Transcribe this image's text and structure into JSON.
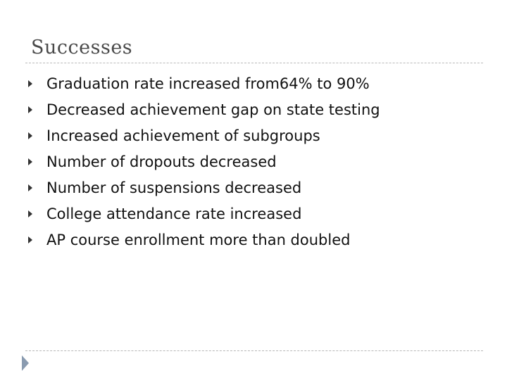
{
  "slide": {
    "title": "Successes",
    "bullets": [
      {
        "icon": "triangle-bullet-icon",
        "text": "Graduation rate increased from64% to 90%"
      },
      {
        "icon": "triangle-bullet-icon",
        "text": "Decreased achievement gap on state testing"
      },
      {
        "icon": "triangle-bullet-icon",
        "text": "Increased achievement of subgroups"
      },
      {
        "icon": "triangle-bullet-icon",
        "text": "Number of dropouts decreased"
      },
      {
        "icon": "triangle-bullet-icon",
        "text": "Number of suspensions decreased"
      },
      {
        "icon": "triangle-bullet-icon",
        "text": "College attendance rate increased"
      },
      {
        "icon": "triangle-bullet-icon",
        "text": "AP course enrollment more than doubled"
      }
    ],
    "colors": {
      "title": "#4a4a4a",
      "text": "#111111",
      "rule": "#b8b8b8",
      "marker": "#8a9bb0"
    }
  }
}
